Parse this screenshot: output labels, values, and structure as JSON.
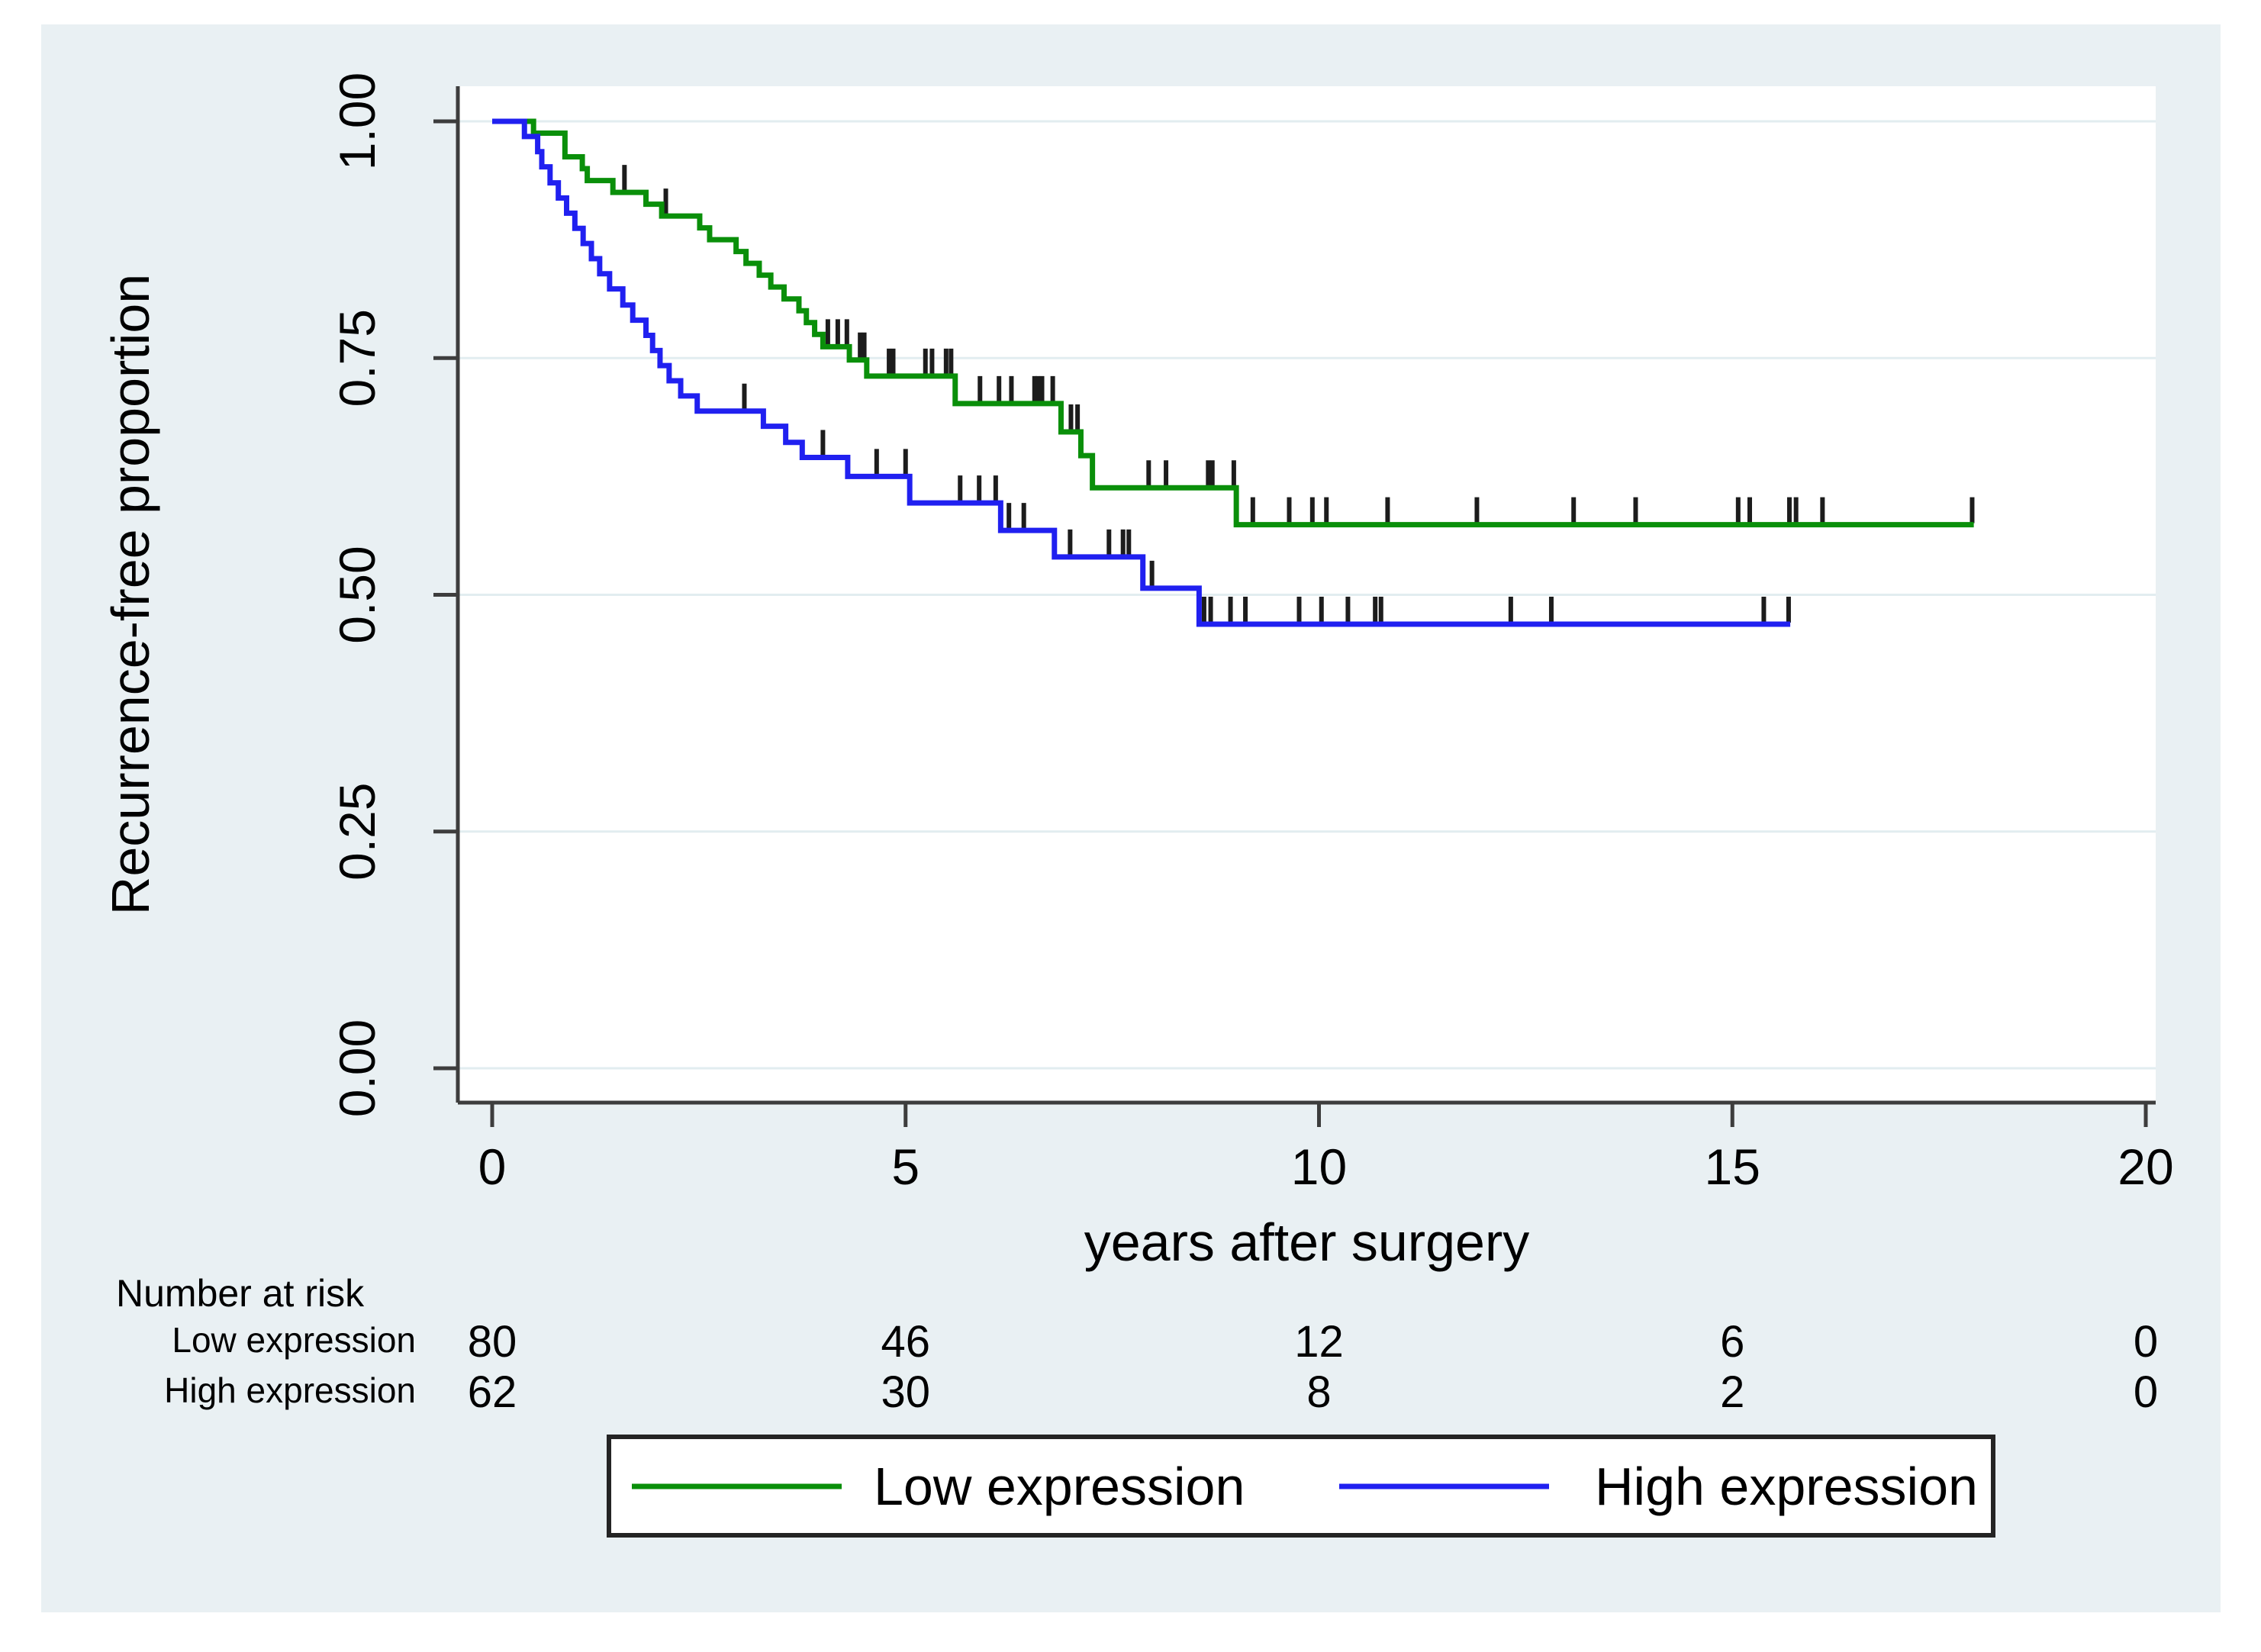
{
  "chart_data": {
    "type": "line",
    "subtype": "kaplan-meier-step",
    "title": "",
    "xlabel": "years after surgery",
    "ylabel": "Recurrence-free proportion",
    "xlim": [
      0,
      20
    ],
    "ylim": [
      0,
      1
    ],
    "xticks": [
      "0",
      "5",
      "10",
      "15",
      "20"
    ],
    "xtick_values": [
      0,
      5,
      10,
      15,
      20
    ],
    "yticks": [
      "0.00",
      "0.25",
      "0.50",
      "0.75",
      "1.00"
    ],
    "ytick_values": [
      0,
      0.25,
      0.5,
      0.75,
      1.0
    ],
    "grid": "horizontal",
    "legend_position": "bottom",
    "series": [
      {
        "name": "Low expression",
        "color": "#0a8f0a",
        "start": [
          0,
          1.0
        ],
        "steps": [
          [
            0.5,
            0.9875
          ],
          [
            0.88,
            0.9625
          ],
          [
            1.09,
            0.95
          ],
          [
            1.15,
            0.9375
          ],
          [
            1.46,
            0.925
          ],
          [
            1.86,
            0.9125
          ],
          [
            2.05,
            0.9
          ],
          [
            2.51,
            0.8875
          ],
          [
            2.63,
            0.875
          ],
          [
            2.95,
            0.8625
          ],
          [
            3.07,
            0.85
          ],
          [
            3.23,
            0.8375
          ],
          [
            3.37,
            0.825
          ],
          [
            3.53,
            0.8125
          ],
          [
            3.71,
            0.8
          ],
          [
            3.8,
            0.7875
          ],
          [
            3.9,
            0.775
          ],
          [
            4.0,
            0.762
          ],
          [
            4.32,
            0.748
          ],
          [
            4.53,
            0.731
          ],
          [
            5.6,
            0.702
          ],
          [
            6.88,
            0.672
          ],
          [
            7.12,
            0.647
          ],
          [
            7.26,
            0.613
          ],
          [
            9.0,
            0.574
          ]
        ],
        "end_time": 17.92,
        "censor_times": [
          1.6,
          2.1,
          4.06,
          4.18,
          4.29,
          4.45,
          4.5,
          4.8,
          4.85,
          5.24,
          5.32,
          5.49,
          5.55,
          5.9,
          6.13,
          6.28,
          6.56,
          6.6,
          6.65,
          6.78,
          7.0,
          7.08,
          7.94,
          8.15,
          8.66,
          8.71,
          8.97,
          9.2,
          9.64,
          9.92,
          10.09,
          10.83,
          11.91,
          13.08,
          13.83,
          15.07,
          15.21,
          15.69,
          15.77,
          16.09,
          17.9
        ]
      },
      {
        "name": "High expression",
        "color": "#2020f0",
        "start": [
          0,
          1.0
        ],
        "steps": [
          [
            0.39,
            0.984
          ],
          [
            0.55,
            0.968
          ],
          [
            0.6,
            0.952
          ],
          [
            0.7,
            0.935
          ],
          [
            0.8,
            0.919
          ],
          [
            0.9,
            0.903
          ],
          [
            1.0,
            0.887
          ],
          [
            1.1,
            0.871
          ],
          [
            1.2,
            0.855
          ],
          [
            1.3,
            0.839
          ],
          [
            1.42,
            0.823
          ],
          [
            1.58,
            0.806
          ],
          [
            1.7,
            0.79
          ],
          [
            1.86,
            0.774
          ],
          [
            1.94,
            0.758
          ],
          [
            2.03,
            0.742
          ],
          [
            2.14,
            0.726
          ],
          [
            2.28,
            0.71
          ],
          [
            2.48,
            0.694
          ],
          [
            3.28,
            0.678
          ],
          [
            3.55,
            0.661
          ],
          [
            3.75,
            0.645
          ],
          [
            4.3,
            0.625
          ],
          [
            5.05,
            0.597
          ],
          [
            6.15,
            0.568
          ],
          [
            6.8,
            0.54
          ],
          [
            7.87,
            0.507
          ],
          [
            8.55,
            0.469
          ]
        ],
        "end_time": 15.7,
        "censor_times": [
          3.05,
          4.0,
          4.65,
          5.0,
          5.66,
          5.89,
          6.09,
          6.25,
          6.43,
          6.99,
          7.46,
          7.63,
          7.7,
          7.98,
          8.61,
          8.69,
          8.93,
          9.11,
          9.76,
          10.03,
          10.35,
          10.68,
          10.75,
          12.32,
          12.81,
          15.38,
          15.68
        ]
      }
    ],
    "risk_table": {
      "title": "Number at risk",
      "times": [
        0,
        5,
        10,
        15,
        20
      ],
      "rows": [
        {
          "label": "Low expression",
          "counts": [
            "80",
            "46",
            "12",
            "6",
            "0"
          ]
        },
        {
          "label": "High expression",
          "counts": [
            "62",
            "30",
            "8",
            "2",
            "0"
          ]
        }
      ]
    },
    "legend": {
      "entries": [
        {
          "label": "Low expression",
          "color": "#0a8f0a"
        },
        {
          "label": "High expression",
          "color": "#2020f0"
        }
      ]
    }
  },
  "colors": {
    "page_background": "#ffffff",
    "panel_background": "#e9f0f3",
    "plot_background": "#ffffff",
    "gridline": "#e2edf0",
    "axis": "#3d3d3d",
    "censor_tick": "#1c1c1c",
    "text": "#000000",
    "legend_border": "#242424",
    "legend_background": "#ffffff"
  }
}
